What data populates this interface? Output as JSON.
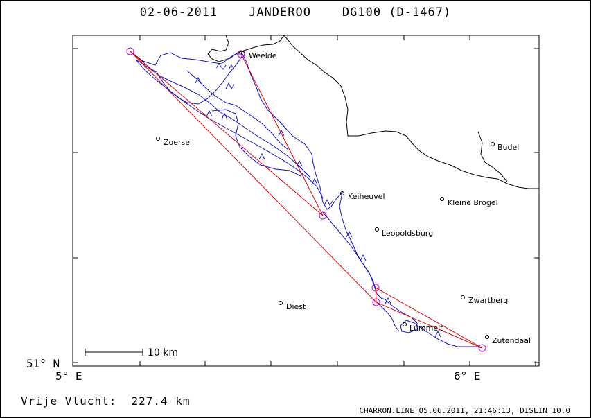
{
  "title": "02-06-2011    JANDEROO    DG100 (D-1467)",
  "axis": {
    "y_tick": "51° N",
    "x_ticks": [
      "5° E",
      "6° E"
    ]
  },
  "scale_bar_label": "10 km",
  "places": [
    {
      "name": "Weelde"
    },
    {
      "name": "Zoersel"
    },
    {
      "name": "Budel"
    },
    {
      "name": "Keiheuvel"
    },
    {
      "name": "Kleine Brogel"
    },
    {
      "name": "Leopoldsburg"
    },
    {
      "name": "Zwartberg"
    },
    {
      "name": "Diest"
    },
    {
      "name": "Lummelt"
    },
    {
      "name": "Zutendaal"
    }
  ],
  "summary": {
    "label": "Vrije Vlucht:",
    "distance": "227.4 km"
  },
  "footer": "CHARRON.LINE 05.06.2011, 21:46:13, DISLIN 10.0",
  "colors": {
    "track": "#1010d0",
    "task": "#e00000",
    "turnpoint": "#d000d0",
    "border": "#000000"
  }
}
